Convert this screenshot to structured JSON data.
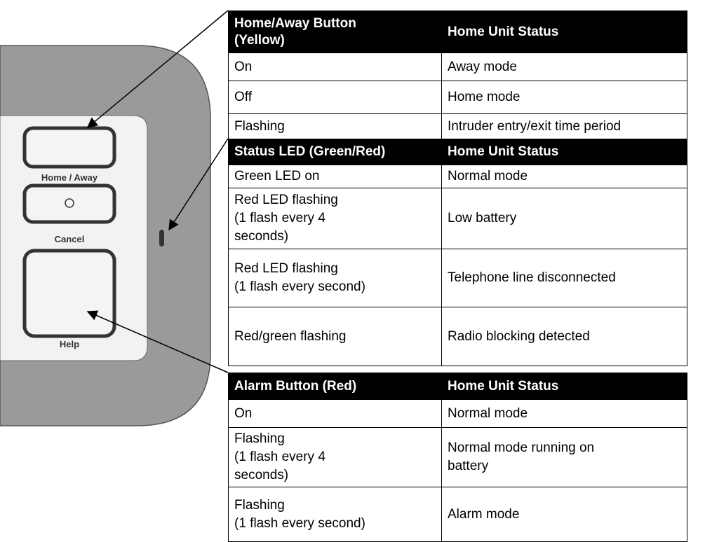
{
  "device": {
    "buttons": [
      "Home / Away",
      "Cancel",
      "Help"
    ]
  },
  "tables": [
    {
      "header": [
        "Home/Away Button\n(Yellow)",
        "Home Unit Status"
      ],
      "rows": [
        [
          "On",
          "Away mode"
        ],
        [
          "Off",
          "Home mode"
        ],
        [
          "Flashing",
          "Intruder entry/exit time period"
        ]
      ]
    },
    {
      "header": [
        "Status LED (Green/Red)",
        "Home Unit Status"
      ],
      "rows": [
        [
          "Green LED on",
          "Normal mode"
        ],
        [
          "Red LED flashing\n(1 flash every 4\nseconds)",
          "Low battery"
        ],
        [
          "Red LED flashing\n(1 flash every second)",
          "Telephone line disconnected"
        ],
        [
          "Red/green flashing",
          "Radio blocking detected"
        ]
      ]
    },
    {
      "header": [
        "Alarm Button (Red)",
        "Home Unit Status"
      ],
      "rows": [
        [
          "On",
          "Normal mode"
        ],
        [
          "Flashing\n(1 flash every 4\nseconds)",
          "Normal mode running on\nbattery"
        ],
        [
          "Flashing\n(1 flash every second)",
          "Alarm mode"
        ]
      ]
    }
  ]
}
